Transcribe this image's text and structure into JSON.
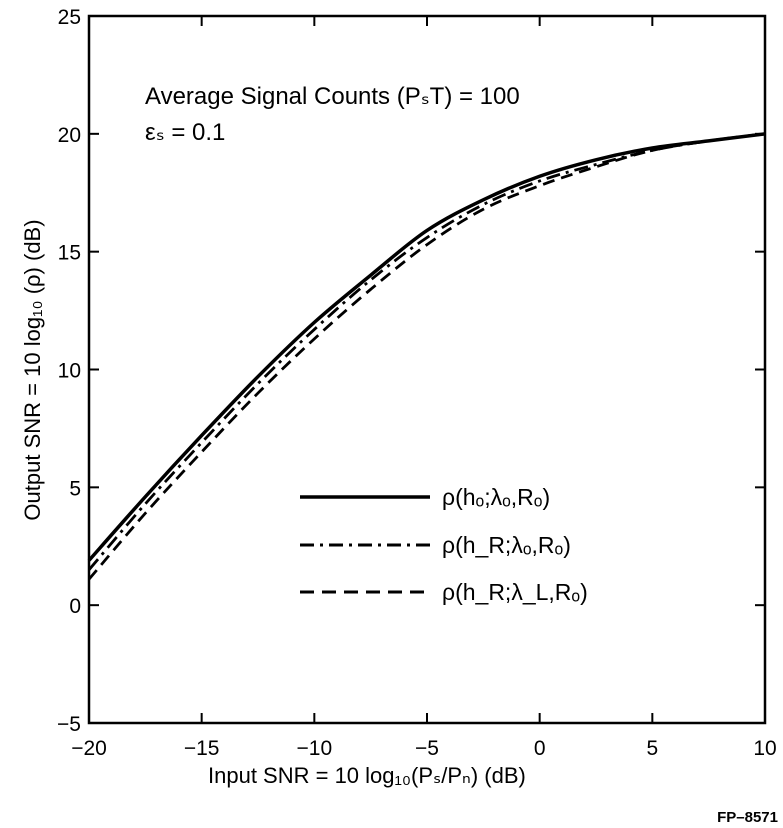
{
  "chart_data": {
    "type": "line",
    "xlabel": "Input SNR = 10 log₁₀(Pₛ/Pₙ)    (dB)",
    "ylabel": "Output SNR = 10 log₁₀ (ρ)  (dB)",
    "xlim": [
      -20,
      10
    ],
    "ylim": [
      -5,
      25
    ],
    "x_ticks": [
      "−20",
      "−15",
      "−10",
      "−5",
      "0",
      "5",
      "10"
    ],
    "y_ticks": [
      "−5",
      "0",
      "5",
      "10",
      "15",
      "20",
      "25"
    ],
    "grid": false,
    "legend_position": "center-right",
    "annotations": [
      "Average Signal Counts (PₛT) = 100",
      "εₛ = 0.1"
    ],
    "figure_code": "FP–8571",
    "x": [
      -20,
      -17.5,
      -15,
      -12.5,
      -10,
      -7.5,
      -5,
      -2.5,
      0,
      2.5,
      5,
      7.5,
      10
    ],
    "series": [
      {
        "name": "ρ(hₒ;λₒ,Rₒ)",
        "style": "solid",
        "values": [
          1.9,
          4.6,
          7.2,
          9.7,
          12.0,
          14.0,
          15.9,
          17.2,
          18.2,
          18.9,
          19.4,
          19.7,
          20.0
        ]
      },
      {
        "name": "ρ(h_R;λₒ,Rₒ)",
        "style": "dash-dot",
        "values": [
          1.5,
          4.3,
          6.9,
          9.4,
          11.7,
          13.8,
          15.6,
          17.0,
          18.0,
          18.7,
          19.3,
          19.7,
          20.0
        ]
      },
      {
        "name": "ρ(h_R;λ_L,Rₒ)",
        "style": "dashed",
        "values": [
          1.1,
          3.9,
          6.5,
          9.0,
          11.3,
          13.4,
          15.3,
          16.8,
          17.8,
          18.6,
          19.3,
          19.7,
          20.0
        ]
      }
    ]
  },
  "colors": {
    "ink": "#000000",
    "background": "#ffffff"
  }
}
